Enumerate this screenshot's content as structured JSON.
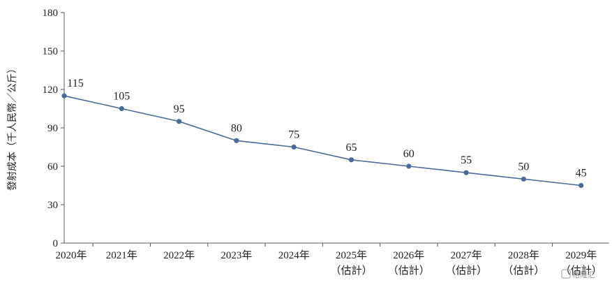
{
  "chart_data": {
    "type": "line",
    "title": "",
    "ylabel": "發射成本（千人民幣／公斤）",
    "xlabel": "",
    "ylim": [
      0,
      180
    ],
    "yticks": [
      0,
      30,
      60,
      90,
      120,
      150,
      180
    ],
    "categories": [
      {
        "year": "2020年",
        "note": ""
      },
      {
        "year": "2021年",
        "note": ""
      },
      {
        "year": "2022年",
        "note": ""
      },
      {
        "year": "2023年",
        "note": ""
      },
      {
        "year": "2024年",
        "note": ""
      },
      {
        "year": "2025年",
        "note": "（估計）"
      },
      {
        "year": "2026年",
        "note": "（估計）"
      },
      {
        "year": "2027年",
        "note": "（估計）"
      },
      {
        "year": "2028年",
        "note": "（估計）"
      },
      {
        "year": "2029年",
        "note": "（估計）"
      }
    ],
    "series": [
      {
        "values": [
          115,
          105,
          95,
          80,
          75,
          65,
          60,
          55,
          50,
          45
        ],
        "color": "#4a6a9a"
      }
    ],
    "grid": false,
    "legend": "none",
    "axis_color": "#555555"
  },
  "watermark": "格隆汇"
}
